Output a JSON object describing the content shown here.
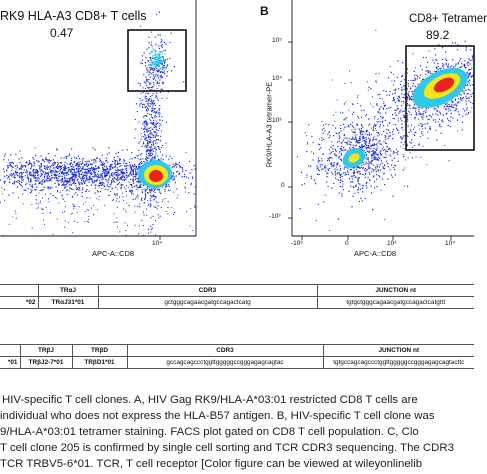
{
  "panel_a": {
    "title": "RK9 HLA-A3 CD8+ T cells",
    "gate_value": "0.47",
    "x_axis_label": "APC-A::CD8",
    "x_tick": "10⁴"
  },
  "panel_b": {
    "letter": "B",
    "gate_title": "CD8+ Tetramer",
    "gate_value": "89.2",
    "y_axis_label": "RK9/HLA-A3 tetramer-PE",
    "y_ticks": [
      "10⁵",
      "10⁴",
      "10³",
      "0",
      "-10³"
    ],
    "x_axis_label": "APC-A::CD8",
    "x_ticks": [
      "-10³",
      "0",
      "10³",
      "10⁴"
    ]
  },
  "table_alpha": {
    "headers": [
      "TRαJ",
      "CDR3",
      "JUNCTION nt"
    ],
    "row": {
      "partial": "*02",
      "gene": "TRαJ31*01",
      "cdr3": "gctgggcagaacgatgccagactcatg",
      "junction": "tgtgctgggcagaacgatgccagactcatgttt"
    }
  },
  "table_beta": {
    "headers": [
      "TRβJ",
      "TRβD",
      "CDR3",
      "JUNCTION nt"
    ],
    "row": {
      "partial": "*01",
      "j_gene": "TRβJ2-7*01",
      "d_gene": "TRβD1*01",
      "cdr3": "gccagcagccctggttgggggccgggagagcagtac",
      "junction": "tgtgccagcagccctggttgggggccgggagagcagtacttc"
    }
  },
  "caption": {
    "lines": [
      "HIV-specific T cell clones. A, HIV Gag RK9/HLA-A*03:01 restricted CD8 T cells are",
      "individual who does not express the HLA-B57 antigen. B, HIV-specific T cell clone was",
      "9/HLA-A*03:01 tetramer staining. FACS plot gated on CD8 T cell population. C, Clo",
      "T cell clone 205 is confirmed by single cell sorting and TCR CDR3 sequencing. The CDR3",
      "TCR TRBV5-6*01. TCR, T cell receptor [Color figure can be viewed at wileyonlinelib"
    ]
  },
  "colors": {
    "density_low": "#1d2fd6",
    "density_mid": "#2fc8e8",
    "density_high": "#f2e51c",
    "density_peak": "#e8231d",
    "gate_box": "#111111"
  }
}
